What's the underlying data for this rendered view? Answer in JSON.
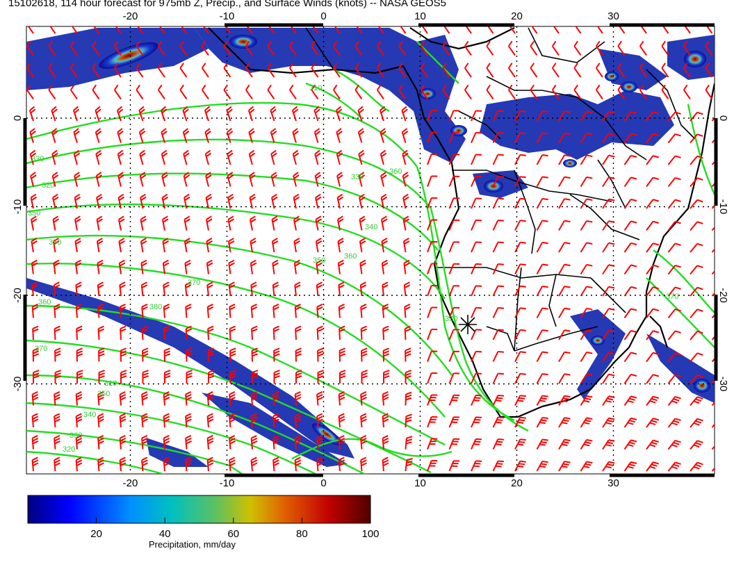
{
  "title": "15102618, 114 hour forecast for 975mb Z, Precip., and Surface Winds (knots) -- NASA GEOS5",
  "map": {
    "lon_ticks": [
      "-20",
      "-10",
      "0",
      "10",
      "20",
      "30"
    ],
    "lat_ticks": [
      "0",
      "-10",
      "-20",
      "-30"
    ],
    "lon_range": [
      -30,
      41
    ],
    "lat_range": [
      -40,
      10
    ],
    "contour_color": "#22dd22",
    "barb_color": "#ff0000",
    "land_outline_color": "#000000",
    "gridlines": "dotted",
    "contour_labels": [
      "330",
      "320",
      "330",
      "340",
      "350",
      "350",
      "360",
      "370",
      "380",
      "360",
      "350",
      "340",
      "330",
      "320",
      "310",
      "370",
      "360",
      "350",
      "370",
      "330",
      "310"
    ],
    "marker": "star"
  },
  "colorbar": {
    "ticks": [
      "20",
      "40",
      "60",
      "80",
      "100"
    ],
    "label": "Precipitation, mm/day",
    "range": [
      0,
      100
    ],
    "colors": [
      "#000080",
      "#0000ff",
      "#0080ff",
      "#00c0c0",
      "#40c080",
      "#a0c040",
      "#e0c000",
      "#e06000",
      "#c00000",
      "#600000"
    ]
  }
}
